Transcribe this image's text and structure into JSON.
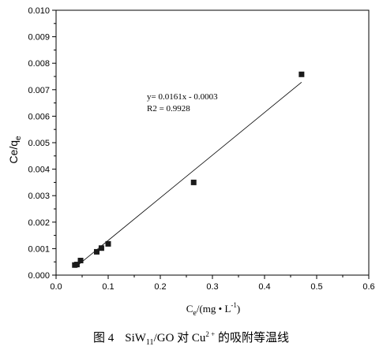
{
  "chart_data": {
    "type": "scatter",
    "x": [
      0.036,
      0.04,
      0.047,
      0.078,
      0.087,
      0.1,
      0.264,
      0.471
    ],
    "y": [
      0.00038,
      0.0004,
      0.00055,
      0.00088,
      0.00102,
      0.00118,
      0.0035,
      0.00758
    ],
    "fit_line": {
      "slope": 0.0161,
      "intercept": -0.0003,
      "x_range": [
        0.036,
        0.471
      ]
    },
    "annotation": [
      "y= 0.0161x - 0.0003",
      "R2 = 0.9928"
    ],
    "xlim": [
      0.0,
      0.6
    ],
    "ylim": [
      0.0,
      0.01
    ],
    "xticks": [
      "0.0",
      "0.1",
      "0.2",
      "0.3",
      "0.4",
      "0.5",
      "0.6"
    ],
    "yticks": [
      "0.000",
      "0.001",
      "0.002",
      "0.003",
      "0.004",
      "0.005",
      "0.006",
      "0.007",
      "0.008",
      "0.009",
      "0.010"
    ],
    "xlabel": {
      "main": "C",
      "sub": "e",
      "rest": "/(mg • L",
      "sup": "-1",
      "end": ")"
    },
    "ylabel": {
      "main": "Ce/q",
      "sub": "e"
    },
    "caption": {
      "fig": "图 4",
      "p1": "SiW",
      "sub": "11",
      "p2": "/GO 对 Cu",
      "sup": "2 +",
      "p3": " 的吸附等温线"
    },
    "grid": false,
    "marker_color": "#1a1a1a",
    "line_color": "#000000"
  }
}
